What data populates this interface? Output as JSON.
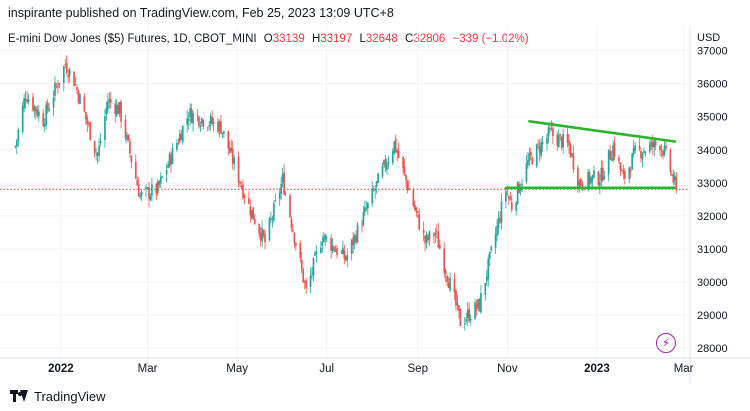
{
  "header": {
    "text": "inspirante published on TradingView.com, Feb 25, 2023 13:09 UTC+8"
  },
  "legend": {
    "symbol": "E-mini Dow Jones ($5) Futures, 1D, CBOT_MINI",
    "o_label": "O",
    "o_value": "33139",
    "h_label": "H",
    "h_value": "33197",
    "l_label": "L",
    "l_value": "32648",
    "c_label": "C",
    "c_value": "32806",
    "change": "−339 (−1.02%)"
  },
  "footer": {
    "brand": "TradingView"
  },
  "icons": {
    "logo": "tradingview-logo-icon",
    "flash": "lightning-icon"
  },
  "colors": {
    "up": "#26a69a",
    "down": "#ef5350",
    "trend": "#2cb52c",
    "price_line": "#f23645",
    "flash": "#9c27b0"
  },
  "chart_data": {
    "type": "candlestick",
    "currency_label": "USD",
    "ylim": [
      27700,
      37200
    ],
    "y_ticks": [
      28000,
      29000,
      30000,
      31000,
      32000,
      33000,
      34000,
      35000,
      36000,
      37000
    ],
    "x_ticks": [
      {
        "label": "2022",
        "date": "2022-01-01",
        "bold": true
      },
      {
        "label": "Mar",
        "date": "2022-03-01",
        "bold": false
      },
      {
        "label": "May",
        "date": "2022-05-01",
        "bold": false
      },
      {
        "label": "Jul",
        "date": "2022-07-01",
        "bold": false
      },
      {
        "label": "Sep",
        "date": "2022-09-01",
        "bold": false
      },
      {
        "label": "Nov",
        "date": "2022-11-01",
        "bold": false
      },
      {
        "label": "2023",
        "date": "2023-01-01",
        "bold": true
      },
      {
        "label": "Mar",
        "date": "2023-03-01",
        "bold": false
      }
    ],
    "xlim": [
      "2021-11-26",
      "2023-03-04"
    ],
    "last_date": "2023-02-24",
    "last_close": 32806,
    "anchors": [
      [
        "2021-12-01",
        34100
      ],
      [
        "2021-12-08",
        35700
      ],
      [
        "2021-12-20",
        34900
      ],
      [
        "2022-01-04",
        36600
      ],
      [
        "2022-01-10",
        36100
      ],
      [
        "2022-01-26",
        33800
      ],
      [
        "2022-02-02",
        35500
      ],
      [
        "2022-02-10",
        35200
      ],
      [
        "2022-02-24",
        32600
      ],
      [
        "2022-03-08",
        32800
      ],
      [
        "2022-03-29",
        35100
      ],
      [
        "2022-04-20",
        34700
      ],
      [
        "2022-05-09",
        32300
      ],
      [
        "2022-05-20",
        31200
      ],
      [
        "2022-06-01",
        33100
      ],
      [
        "2022-06-17",
        29700
      ],
      [
        "2022-06-28",
        31400
      ],
      [
        "2022-07-14",
        30700
      ],
      [
        "2022-08-16",
        34200
      ],
      [
        "2022-09-06",
        31200
      ],
      [
        "2022-09-13",
        31500
      ],
      [
        "2022-09-30",
        28800
      ],
      [
        "2022-10-13",
        29300
      ],
      [
        "2022-10-31",
        32800
      ],
      [
        "2022-11-04",
        32300
      ],
      [
        "2022-11-15",
        33600
      ],
      [
        "2022-11-30",
        34500
      ],
      [
        "2022-12-13",
        34100
      ],
      [
        "2022-12-20",
        33000
      ],
      [
        "2023-01-04",
        33200
      ],
      [
        "2023-01-12",
        34100
      ],
      [
        "2023-01-19",
        33100
      ],
      [
        "2023-01-27",
        33900
      ],
      [
        "2023-02-13",
        34200
      ],
      [
        "2023-02-17",
        33800
      ],
      [
        "2023-02-24",
        32806
      ]
    ],
    "drawings": [
      {
        "type": "trendline",
        "color": "#2cb52c",
        "from": [
          "2022-11-16",
          34860
        ],
        "to": [
          "2023-02-23",
          34250
        ]
      },
      {
        "type": "trendline",
        "color": "#2cb52c",
        "from": [
          "2022-10-31",
          32850
        ],
        "to": [
          "2023-02-23",
          32850
        ]
      }
    ]
  }
}
